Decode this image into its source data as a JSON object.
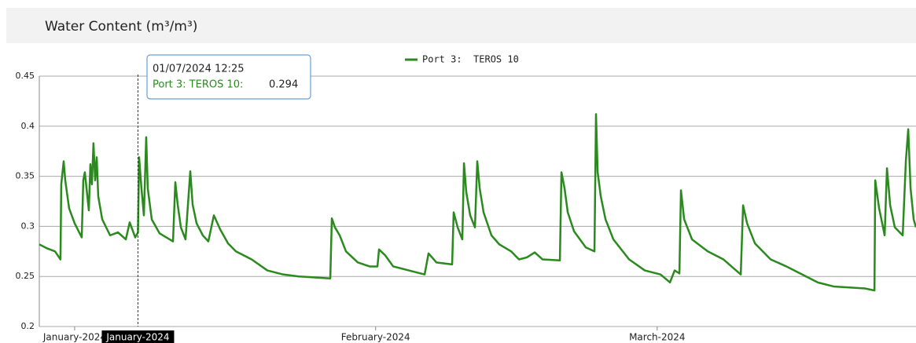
{
  "chart_data": {
    "type": "line",
    "title": "Water Content (m³/m³)",
    "x": [
      -3.64,
      -2.83,
      -2.02,
      -1.46,
      -1.38,
      -1.13,
      -0.97,
      -0.57,
      0,
      0.73,
      0.89,
      1.05,
      1.46,
      1.62,
      1.78,
      1.94,
      2.11,
      2.27,
      2.43,
      2.84,
      3.65,
      4.46,
      5.27,
      5.67,
      6.24,
      6.52,
      6.64,
      6.88,
      7.13,
      7.37,
      7.53,
      7.94,
      8.75,
      10.13,
      10.37,
      10.61,
      10.94,
      11.42,
      11.91,
      12.15,
      12.56,
      13.2,
      13.77,
      14.34,
      14.99,
      15.8,
      16.61,
      18.23,
      19.85,
      21.47,
      23.09,
      26.33,
      26.49,
      26.81,
      27.3,
      27.95,
      29.16,
      30.38,
      31.19,
      31.35,
      31.99,
      32.81,
      34.43,
      36.05,
      36.45,
      37.26,
      38.88,
      39.04,
      39.45,
      39.93,
      40.1,
      40.34,
      40.74,
      41.23,
      41.47,
      41.72,
      42.12,
      42.93,
      43.74,
      44.96,
      45.77,
      46.58,
      47.39,
      48.2,
      49.98,
      50.14,
      50.46,
      50.79,
      51.44,
      52.65,
      53.54,
      53.7,
      53.87,
      54.19,
      54.68,
      55.49,
      57.11,
      58.73,
      60.35,
      61.32,
      61.8,
      62.29,
      62.45,
      62.78,
      63.59,
      65.21,
      66.83,
      68.61,
      68.85,
      69.26,
      70.07,
      71.69,
      73.31,
      74.93,
      76.55,
      78.17,
      81.41,
      82.38,
      82.46,
      82.86,
      83.43,
      83.67,
      84.0,
      84.48,
      85.29,
      85.62,
      85.86,
      86.1,
      86.42,
      86.66
    ],
    "series": [
      {
        "name": "Port 3:  TEROS 10",
        "color": "#2a8a1e",
        "values": [
          0.282,
          0.278,
          0.275,
          0.267,
          0.342,
          0.365,
          0.346,
          0.318,
          0.303,
          0.289,
          0.346,
          0.354,
          0.316,
          0.362,
          0.342,
          0.383,
          0.346,
          0.369,
          0.33,
          0.307,
          0.291,
          0.294,
          0.287,
          0.304,
          0.289,
          0.294,
          0.369,
          0.338,
          0.311,
          0.389,
          0.338,
          0.307,
          0.293,
          0.285,
          0.344,
          0.322,
          0.299,
          0.287,
          0.355,
          0.322,
          0.303,
          0.291,
          0.285,
          0.311,
          0.297,
          0.283,
          0.275,
          0.267,
          0.256,
          0.252,
          0.25,
          0.248,
          0.308,
          0.299,
          0.291,
          0.275,
          0.264,
          0.26,
          0.26,
          0.277,
          0.271,
          0.26,
          0.256,
          0.252,
          0.273,
          0.264,
          0.262,
          0.314,
          0.299,
          0.287,
          0.363,
          0.334,
          0.311,
          0.299,
          0.365,
          0.338,
          0.314,
          0.291,
          0.282,
          0.275,
          0.267,
          0.269,
          0.274,
          0.267,
          0.266,
          0.354,
          0.338,
          0.314,
          0.295,
          0.279,
          0.275,
          0.412,
          0.354,
          0.33,
          0.307,
          0.287,
          0.267,
          0.256,
          0.252,
          0.244,
          0.256,
          0.253,
          0.336,
          0.307,
          0.287,
          0.275,
          0.267,
          0.252,
          0.321,
          0.303,
          0.283,
          0.267,
          0.26,
          0.252,
          0.244,
          0.24,
          0.238,
          0.236,
          0.346,
          0.318,
          0.291,
          0.358,
          0.321,
          0.299,
          0.291,
          0.366,
          0.397,
          0.338,
          0.307,
          0.299
        ]
      }
    ],
    "xlim": [
      -3.64,
      86.66
    ],
    "xticks": [
      {
        "value": 0,
        "label": "January-2024"
      },
      {
        "value": 31,
        "label": "February-2024"
      },
      {
        "value": 60,
        "label": "March-2024"
      }
    ],
    "ylim": [
      0.2,
      0.45
    ],
    "yticks": [
      0.2,
      0.25,
      0.3,
      0.35,
      0.4,
      0.45
    ],
    "grid": true,
    "legend": "top",
    "tooltip": {
      "x": 6.52,
      "date": "01/07/2024 12:25",
      "series": "Port 3: TEROS 10:",
      "value": 0.294
    },
    "crosshair_label": "January-2024"
  }
}
